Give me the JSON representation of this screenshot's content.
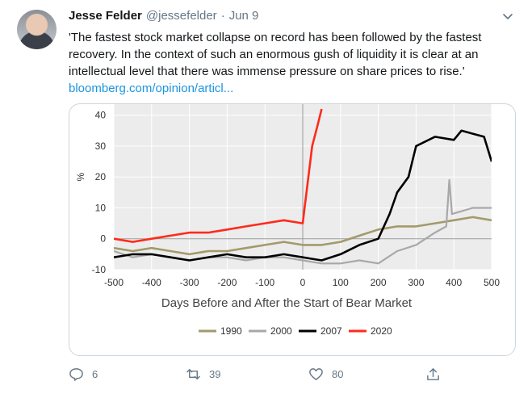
{
  "tweet": {
    "name": "Jesse Felder",
    "handle": "@jessefelder",
    "dot": "·",
    "date": "Jun 9",
    "text": "'The fastest stock market collapse on record has been followed by the fastest recovery. In the context of such an enormous gush of liquidity it is clear at an intellectual level that there was immense pressure on share prices to rise.'",
    "link": "bloomberg.com/opinion/articl...",
    "replies": "6",
    "retweets": "39",
    "likes": "80"
  },
  "icons": [
    "chevron-down-icon",
    "reply-icon",
    "retweet-icon",
    "like-icon",
    "share-icon"
  ],
  "colors": {
    "accent": "#1b95e0",
    "muted": "#657786",
    "s1990": "#a39a6a",
    "s2000": "#a8a8a8",
    "s2007": "#000000",
    "s2020": "#ff2a1a"
  },
  "chart_data": {
    "type": "line",
    "xlabel": "Days Before and After the Start of Bear Market",
    "ylabel": "%",
    "xlim": [
      -500,
      500
    ],
    "ylim": [
      -10,
      42
    ],
    "x_ticks": [
      "-500",
      "-400",
      "-300",
      "-200",
      "-100",
      "0",
      "100",
      "200",
      "300",
      "400",
      "500"
    ],
    "y_ticks": [
      "-10",
      "0",
      "10",
      "20",
      "30",
      "40"
    ],
    "grid": true,
    "legend": "bottom",
    "series": [
      {
        "name": "1990",
        "color": "#a39a6a",
        "points": [
          [
            -500,
            -3
          ],
          [
            -450,
            -4
          ],
          [
            -400,
            -3
          ],
          [
            -350,
            -4
          ],
          [
            -300,
            -5
          ],
          [
            -250,
            -4
          ],
          [
            -200,
            -4
          ],
          [
            -150,
            -3
          ],
          [
            -100,
            -2
          ],
          [
            -50,
            -1
          ],
          [
            0,
            -2
          ],
          [
            50,
            -2
          ],
          [
            100,
            -1
          ],
          [
            150,
            1
          ],
          [
            200,
            3
          ],
          [
            250,
            4
          ],
          [
            300,
            4
          ],
          [
            350,
            5
          ],
          [
            400,
            6
          ],
          [
            450,
            7
          ],
          [
            500,
            6
          ]
        ]
      },
      {
        "name": "2000",
        "color": "#a8a8a8",
        "points": [
          [
            -500,
            -4
          ],
          [
            -450,
            -6
          ],
          [
            -400,
            -5
          ],
          [
            -350,
            -6
          ],
          [
            -300,
            -7
          ],
          [
            -250,
            -6
          ],
          [
            -200,
            -6
          ],
          [
            -150,
            -7
          ],
          [
            -100,
            -6
          ],
          [
            -50,
            -6
          ],
          [
            0,
            -7
          ],
          [
            50,
            -8
          ],
          [
            100,
            -8
          ],
          [
            150,
            -7
          ],
          [
            200,
            -8
          ],
          [
            250,
            -4
          ],
          [
            300,
            -2
          ],
          [
            350,
            2
          ],
          [
            380,
            4
          ],
          [
            388,
            19
          ],
          [
            395,
            8
          ],
          [
            450,
            10
          ],
          [
            500,
            10
          ]
        ]
      },
      {
        "name": "2007",
        "color": "#000000",
        "points": [
          [
            -500,
            -6
          ],
          [
            -450,
            -5
          ],
          [
            -400,
            -5
          ],
          [
            -350,
            -6
          ],
          [
            -300,
            -7
          ],
          [
            -250,
            -6
          ],
          [
            -200,
            -5
          ],
          [
            -150,
            -6
          ],
          [
            -100,
            -6
          ],
          [
            -50,
            -5
          ],
          [
            0,
            -6
          ],
          [
            50,
            -7
          ],
          [
            100,
            -5
          ],
          [
            150,
            -2
          ],
          [
            200,
            0
          ],
          [
            230,
            8
          ],
          [
            250,
            15
          ],
          [
            280,
            20
          ],
          [
            300,
            30
          ],
          [
            350,
            33
          ],
          [
            400,
            32
          ],
          [
            420,
            35
          ],
          [
            450,
            34
          ],
          [
            480,
            33
          ],
          [
            500,
            25
          ]
        ]
      },
      {
        "name": "2020",
        "color": "#ff2a1a",
        "points": [
          [
            -500,
            0
          ],
          [
            -450,
            -1
          ],
          [
            -400,
            0
          ],
          [
            -350,
            1
          ],
          [
            -300,
            2
          ],
          [
            -250,
            2
          ],
          [
            -200,
            3
          ],
          [
            -150,
            4
          ],
          [
            -100,
            5
          ],
          [
            -50,
            6
          ],
          [
            0,
            5
          ],
          [
            5,
            10
          ],
          [
            15,
            20
          ],
          [
            25,
            30
          ],
          [
            40,
            37
          ],
          [
            50,
            42
          ]
        ]
      }
    ]
  }
}
